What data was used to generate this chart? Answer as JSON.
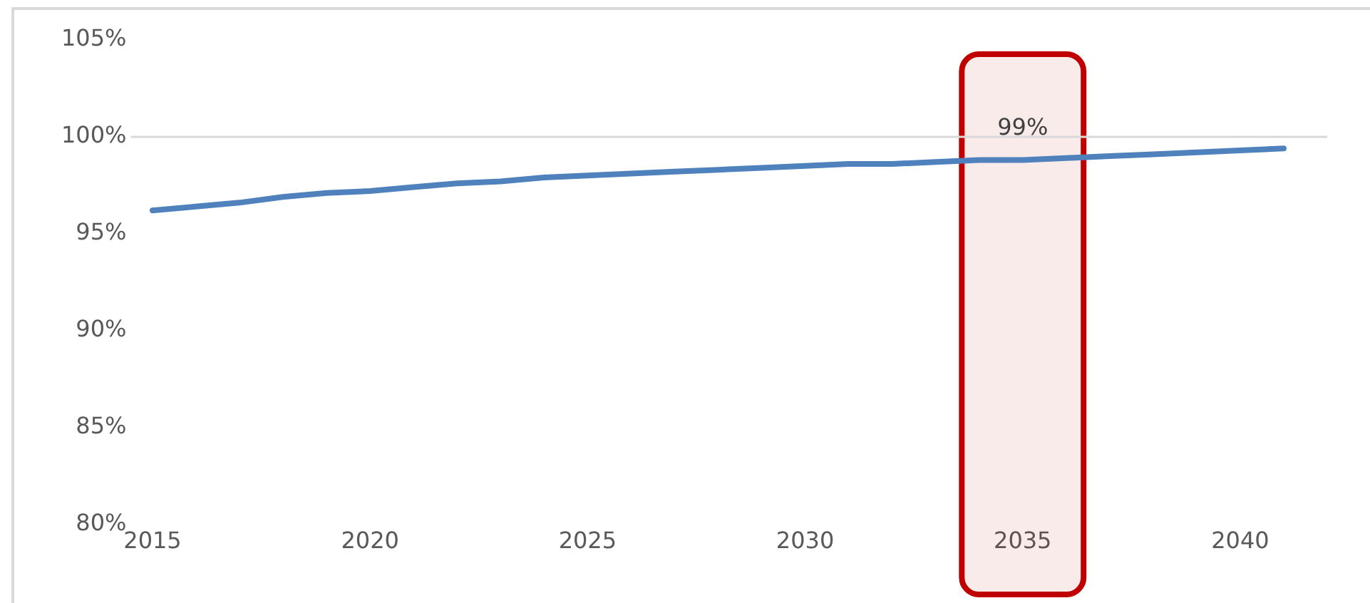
{
  "chart_data": {
    "type": "line",
    "x": [
      2015,
      2016,
      2017,
      2018,
      2019,
      2020,
      2021,
      2022,
      2023,
      2024,
      2025,
      2026,
      2027,
      2028,
      2029,
      2030,
      2031,
      2032,
      2033,
      2034,
      2035,
      2036,
      2037,
      2038,
      2039,
      2040,
      2041
    ],
    "series": [
      {
        "color": "#4f81bd",
        "values": [
          96.2,
          96.4,
          96.6,
          96.9,
          97.1,
          97.2,
          97.4,
          97.6,
          97.7,
          97.9,
          98.0,
          98.1,
          98.2,
          98.3,
          98.4,
          98.5,
          98.6,
          98.6,
          98.7,
          98.8,
          98.8,
          98.9,
          99.0,
          99.1,
          99.2,
          99.3,
          99.4
        ]
      }
    ],
    "xlim": [
      2014.5,
      2042
    ],
    "xticks": [
      2015,
      2020,
      2025,
      2030,
      2035,
      2040
    ],
    "ylim": [
      80,
      105
    ],
    "yticks": [
      {
        "value": 80,
        "label": "80%"
      },
      {
        "value": 85,
        "label": "85%"
      },
      {
        "value": 90,
        "label": "90%"
      },
      {
        "value": 95,
        "label": "95%"
      },
      {
        "value": 100,
        "label": "100%"
      },
      {
        "value": 105,
        "label": "105%"
      }
    ],
    "ref_lines": [
      {
        "axis": "y",
        "value": 100,
        "color": "#d9d9d9"
      }
    ],
    "bands": [
      {
        "axis": "x",
        "from": 2033.6,
        "to": 2036.4,
        "color": "#c00000"
      }
    ],
    "annotations": [
      {
        "text": "99%",
        "x": 2035,
        "y": 98.8
      }
    ],
    "grid": false,
    "legend": false,
    "marker": "none",
    "line_style": "solid"
  }
}
